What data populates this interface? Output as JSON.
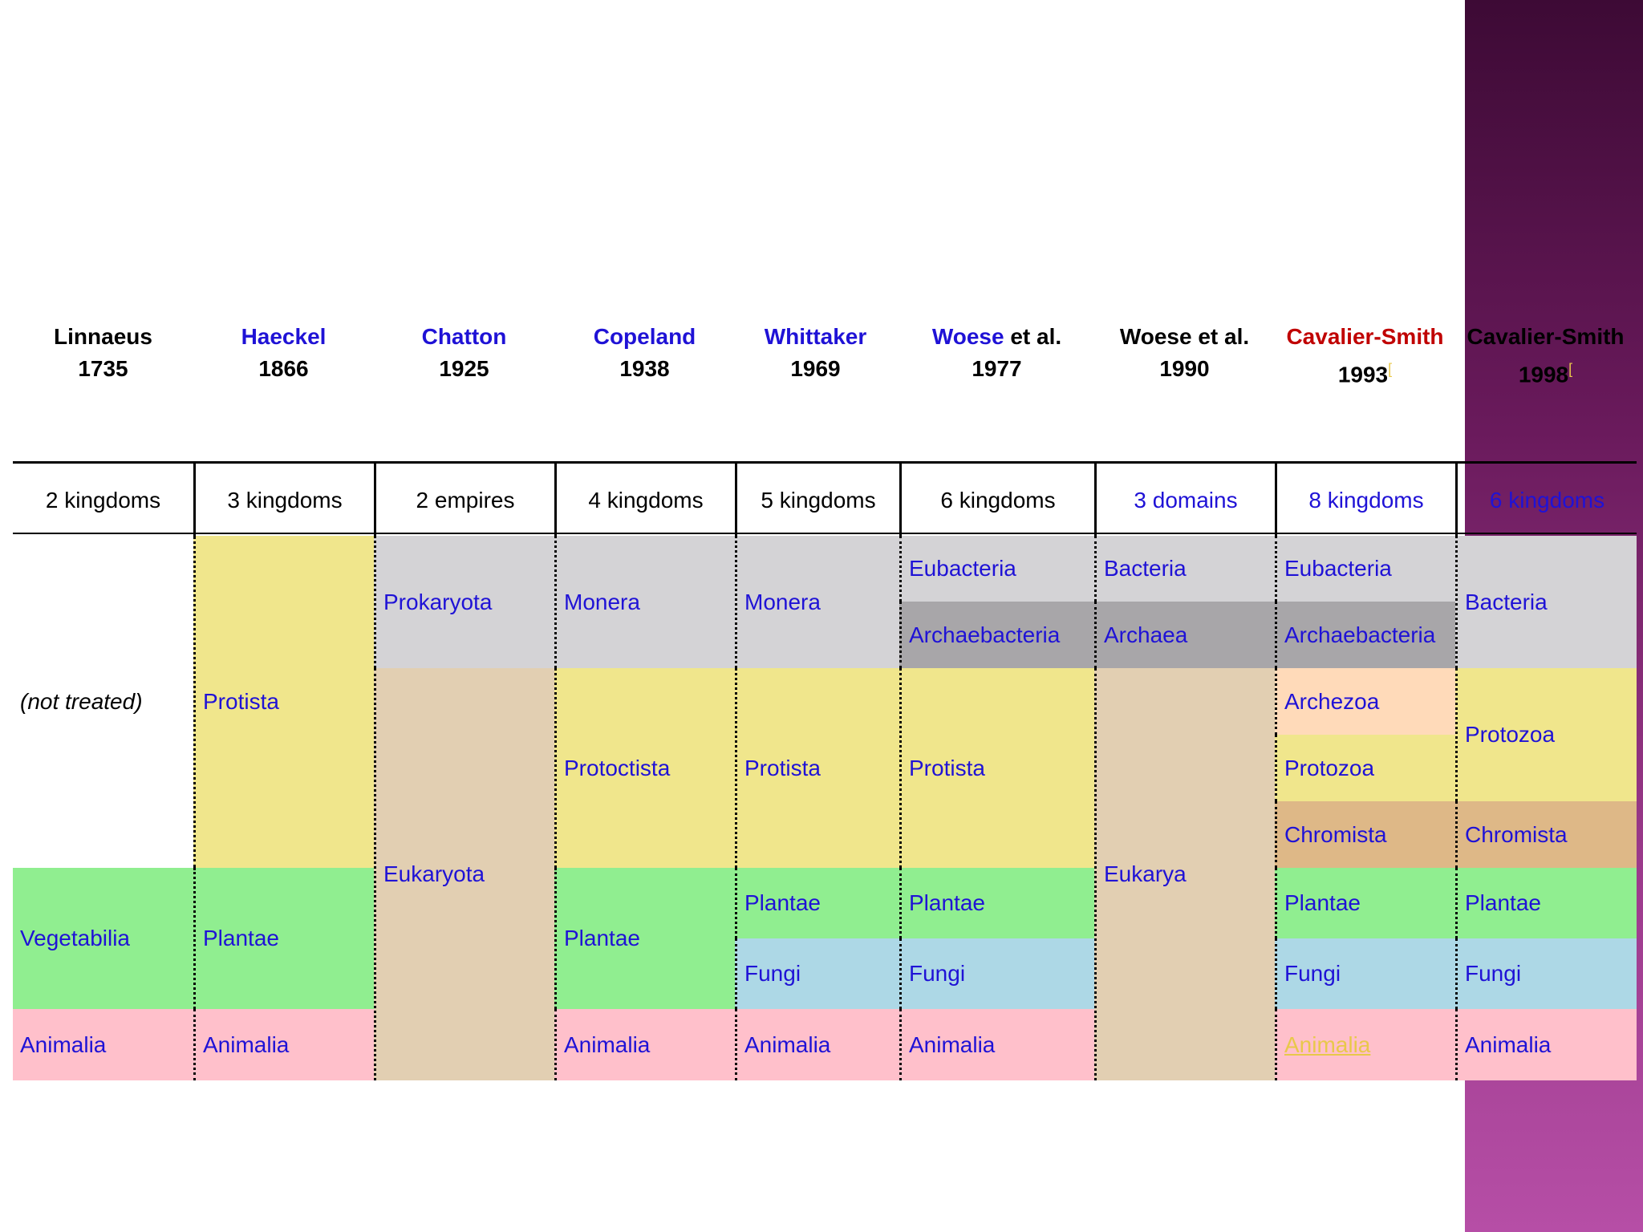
{
  "colors": {
    "sidebar": "#6a1a5c",
    "link_blue": "#1f12d6",
    "highlight_red": "#c00000",
    "prokaryote_grey": "#d4d3d6",
    "archaea_grey": "#a8a6a9",
    "protist_yellow": "#f0e68c",
    "eukaryote_tan": "#e2cfb2",
    "plant_green": "#90ee90",
    "fungi_blue": "#add8e6",
    "animal_pink": "#ffc0cb",
    "archezoa_peach": "#ffdab9",
    "chromista_brown": "#deb887"
  },
  "headers": [
    {
      "name": "Linnaeus",
      "year": "1735"
    },
    {
      "name": "Haeckel",
      "year": "1866"
    },
    {
      "name": "Chatton",
      "year": "1925"
    },
    {
      "name": "Copeland",
      "year": "1938"
    },
    {
      "name": "Whittaker",
      "year": "1969"
    },
    {
      "name_part1": "Woese",
      "name_part2": " et al.",
      "year": "1977"
    },
    {
      "name": "Woese et al.",
      "year": "1990"
    },
    {
      "name": "Cavalier-Smith",
      "year": "1993",
      "note": "[",
      "note_suffix": "]"
    },
    {
      "name": "Cavalier-Smith",
      "year": "1998",
      "note": "["
    }
  ],
  "counts": [
    "2 kingdoms",
    "3 kingdoms",
    "2 empires",
    "4 kingdoms",
    "5 kingdoms",
    "6 kingdoms",
    "3 domains",
    "8 kingdoms",
    "6 kingdoms"
  ],
  "cells": {
    "linnaeus": {
      "not_treated": "(not treated)",
      "vegetabilia": "Vegetabilia",
      "animalia": "Animalia"
    },
    "haeckel": {
      "protista": "Protista",
      "plantae": "Plantae",
      "animalia": "Animalia"
    },
    "chatton": {
      "prokaryota": "Prokaryota",
      "eukaryota": "Eukaryota"
    },
    "copeland": {
      "monera": "Monera",
      "protoctista": "Protoctista",
      "plantae": "Plantae",
      "animalia": "Animalia"
    },
    "whittaker": {
      "monera": "Monera",
      "protista": "Protista",
      "plantae": "Plantae",
      "fungi": "Fungi",
      "animalia": "Animalia"
    },
    "woese1977": {
      "eubacteria": "Eubacteria",
      "archaebacteria": "Archaebacteria",
      "protista": "Protista",
      "plantae": "Plantae",
      "fungi": "Fungi",
      "animalia": "Animalia"
    },
    "woese1990": {
      "bacteria": "Bacteria",
      "archaea": "Archaea",
      "eukarya": "Eukarya"
    },
    "cs1993": {
      "eubacteria": "Eubacteria",
      "archaebacteria": "Archaebacteria",
      "archezoa": "Archezoa",
      "protozoa": "Protozoa",
      "chromista": "Chromista",
      "plantae": "Plantae",
      "fungi": "Fungi",
      "animalia": "Animalia"
    },
    "cs1998": {
      "bacteria": "Bacteria",
      "protozoa": "Protozoa",
      "chromista": "Chromista",
      "plantae": "Plantae",
      "fungi": "Fungi",
      "animalia": "Animalia"
    }
  }
}
